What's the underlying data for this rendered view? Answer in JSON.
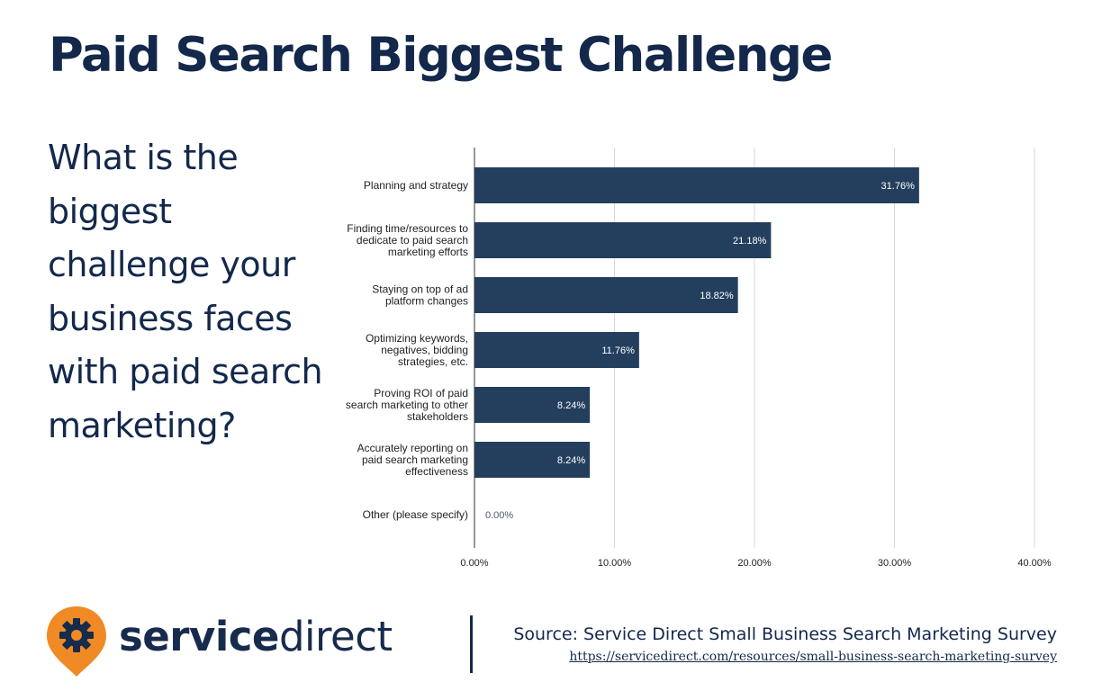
{
  "title": "Paid Search Biggest Challenge",
  "question": "What is the biggest challenge your business faces with paid search marketing?",
  "chart_data": {
    "type": "bar",
    "orientation": "horizontal",
    "categories": [
      [
        "Planning and strategy"
      ],
      [
        "Finding time/resources to",
        "dedicate to paid search",
        "marketing efforts"
      ],
      [
        "Staying on top of ad",
        "platform changes"
      ],
      [
        "Optimizing keywords,",
        "negatives, bidding",
        "strategies, etc."
      ],
      [
        "Proving ROI of paid",
        "search marketing to other",
        "stakeholders"
      ],
      [
        "Accurately reporting on",
        "paid search marketing",
        "effectiveness"
      ],
      [
        "Other (please specify)"
      ]
    ],
    "values": [
      31.76,
      21.18,
      18.82,
      11.76,
      8.24,
      8.24,
      0.0
    ],
    "data_labels": [
      "31.76%",
      "21.18%",
      "18.82%",
      "11.76%",
      "8.24%",
      "8.24%",
      "0.00%"
    ],
    "xlim": [
      0,
      40
    ],
    "xticks": [
      0,
      10,
      20,
      30,
      40
    ],
    "xtick_labels": [
      "0.00%",
      "10.00%",
      "20.00%",
      "30.00%",
      "40.00%"
    ],
    "grid": true,
    "colors": {
      "bar": "#243f5e",
      "grid": "#d9d9d9",
      "axis": "#333333"
    }
  },
  "logo": {
    "bold": "service",
    "light": "direct",
    "colors": {
      "pin": "#f08a24",
      "gear": "#172b4d"
    }
  },
  "source": {
    "text": "Source: Service Direct Small Business Search Marketing Survey",
    "url": "https://servicedirect.com/resources/small-business-search-marketing-survey"
  }
}
